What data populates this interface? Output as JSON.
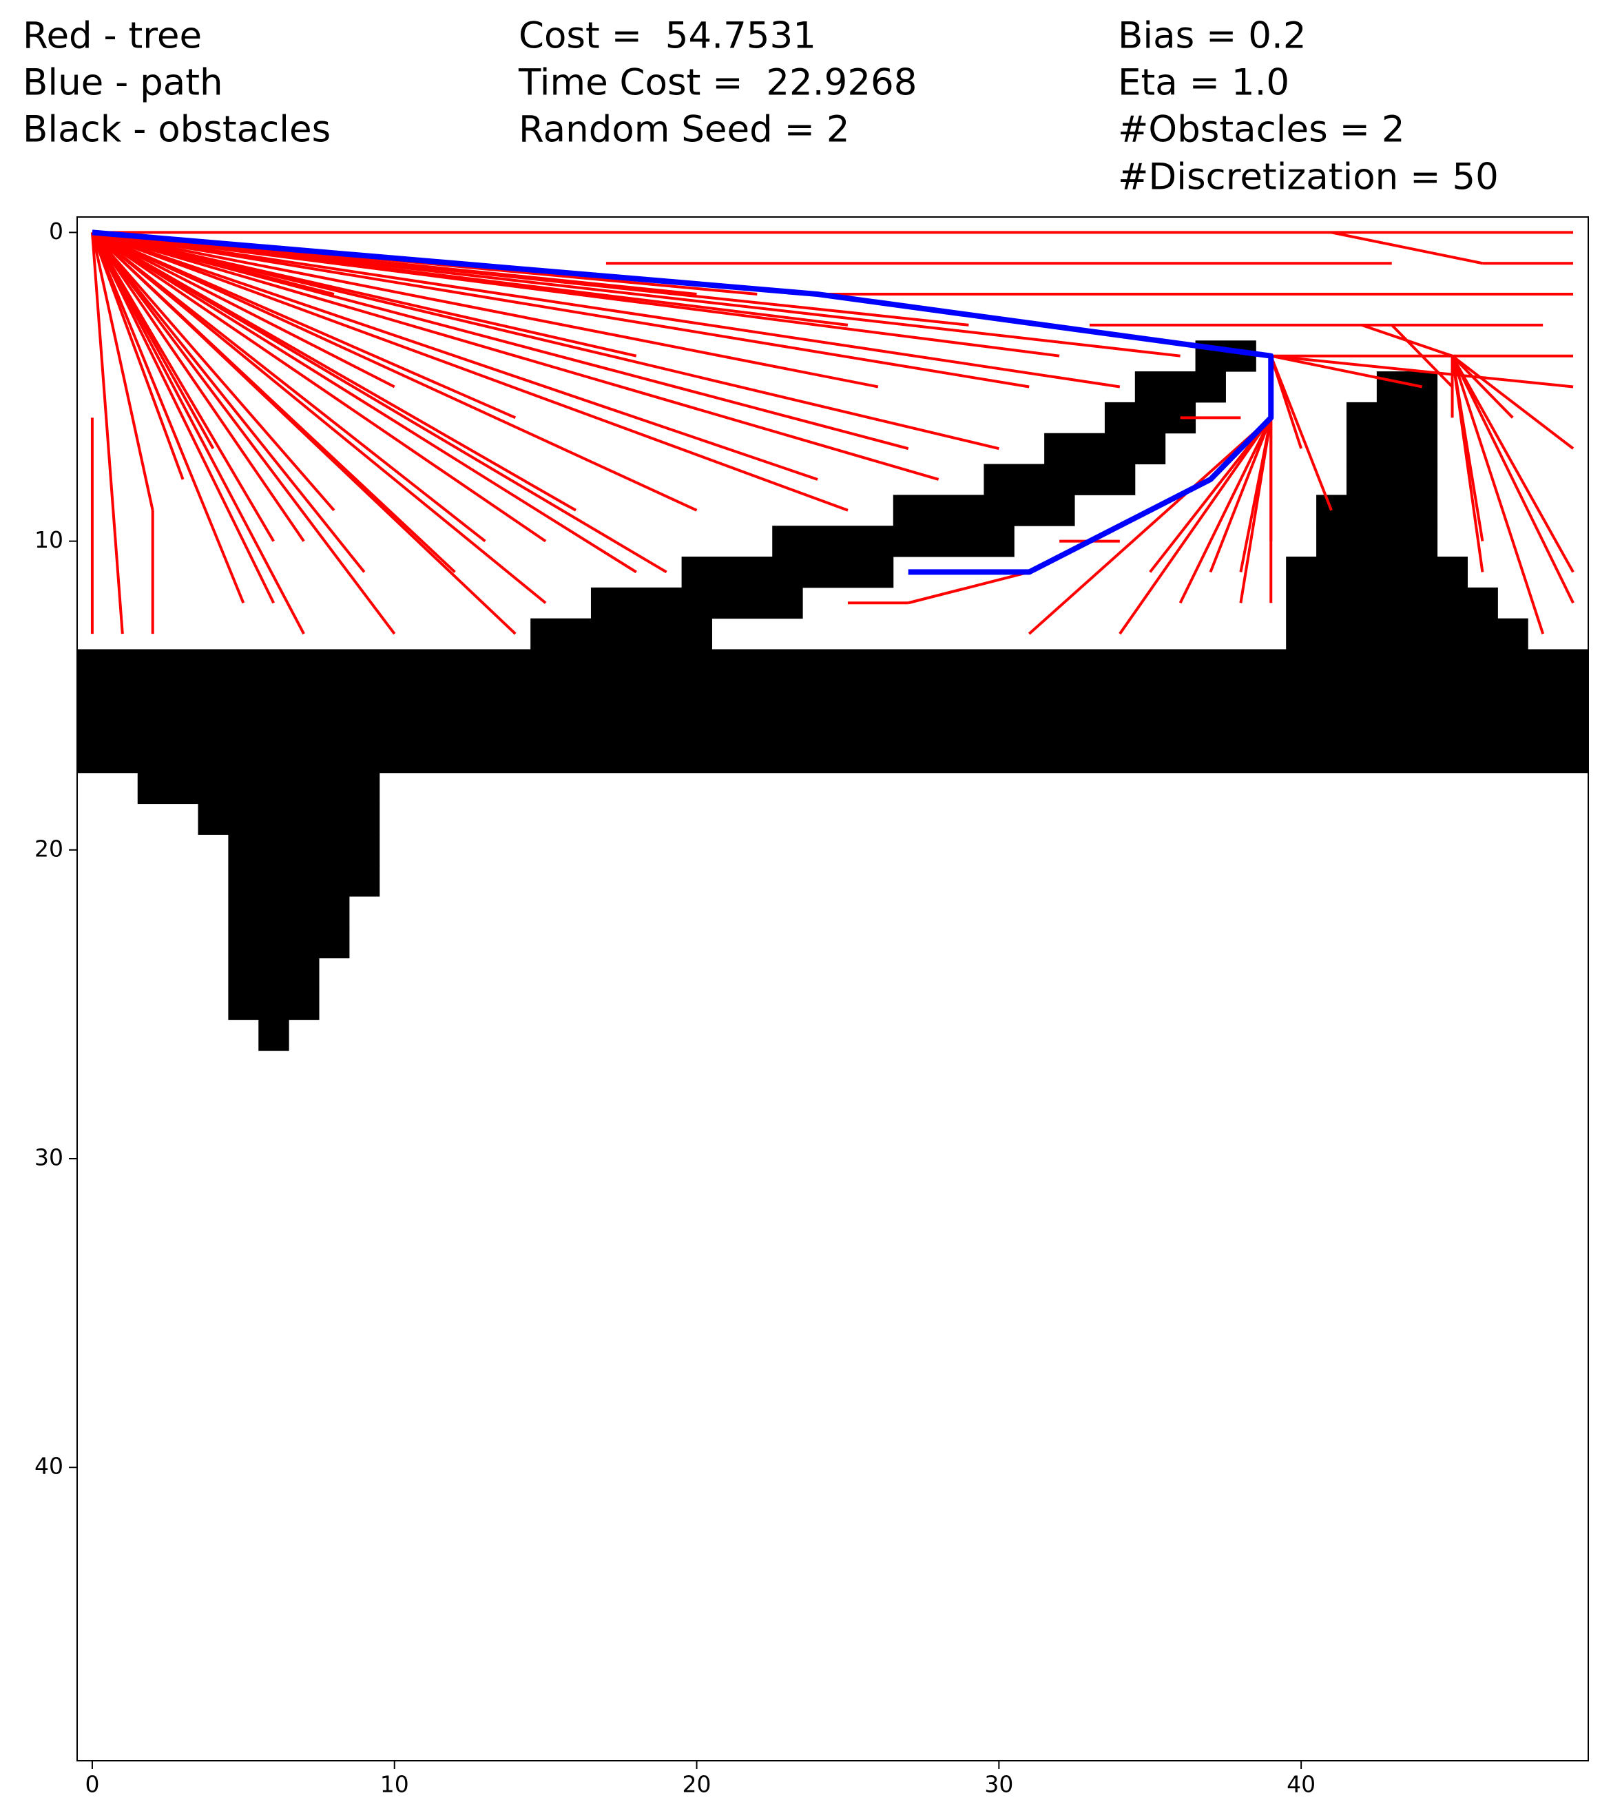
{
  "chart_data": {
    "type": "rrt",
    "annotations": [
      [
        "Red - tree",
        "Blue - path",
        "Black - obstacles"
      ],
      [
        "Cost =  54.7531",
        "Time Cost =  22.9268",
        "Random Seed = 2"
      ],
      [
        "Bias = 0.2",
        "Eta = 1.0",
        "#Obstacles = 2",
        "#Discretization = 50"
      ]
    ],
    "xlim": [
      -0.5,
      49.5
    ],
    "ylim": [
      49.5,
      -0.5
    ],
    "xticks": [
      0,
      10,
      20,
      30,
      40
    ],
    "yticks": [
      0,
      10,
      20,
      30,
      40
    ],
    "obstacle_color": "#000000",
    "obstacles": [
      {
        "row": 4,
        "cols": [
          37,
          38
        ]
      },
      {
        "row": 5,
        "cols": [
          35,
          37
        ]
      },
      {
        "row": 5,
        "cols": [
          43,
          44
        ]
      },
      {
        "row": 6,
        "cols": [
          34,
          36
        ]
      },
      {
        "row": 6,
        "cols": [
          42,
          44
        ]
      },
      {
        "row": 7,
        "cols": [
          32,
          35
        ]
      },
      {
        "row": 7,
        "cols": [
          42,
          44
        ]
      },
      {
        "row": 8,
        "cols": [
          30,
          34
        ]
      },
      {
        "row": 8,
        "cols": [
          42,
          44
        ]
      },
      {
        "row": 9,
        "cols": [
          27,
          32
        ]
      },
      {
        "row": 9,
        "cols": [
          41,
          44
        ]
      },
      {
        "row": 10,
        "cols": [
          23,
          30
        ]
      },
      {
        "row": 10,
        "cols": [
          41,
          44
        ]
      },
      {
        "row": 11,
        "cols": [
          20,
          26
        ]
      },
      {
        "row": 11,
        "cols": [
          40,
          45
        ]
      },
      {
        "row": 12,
        "cols": [
          17,
          23
        ]
      },
      {
        "row": 12,
        "cols": [
          40,
          46
        ]
      },
      {
        "row": 13,
        "cols": [
          15,
          20
        ]
      },
      {
        "row": 13,
        "cols": [
          40,
          47
        ]
      },
      {
        "row": 14,
        "cols": [
          0,
          49
        ]
      },
      {
        "row": 15,
        "cols": [
          0,
          49
        ]
      },
      {
        "row": 16,
        "cols": [
          0,
          49
        ]
      },
      {
        "row": 17,
        "cols": [
          0,
          49
        ]
      },
      {
        "row": 18,
        "cols": [
          2,
          9
        ]
      },
      {
        "row": 19,
        "cols": [
          4,
          9
        ]
      },
      {
        "row": 20,
        "cols": [
          5,
          9
        ]
      },
      {
        "row": 21,
        "cols": [
          5,
          9
        ]
      },
      {
        "row": 22,
        "cols": [
          5,
          8
        ]
      },
      {
        "row": 23,
        "cols": [
          5,
          8
        ]
      },
      {
        "row": 24,
        "cols": [
          5,
          7
        ]
      },
      {
        "row": 25,
        "cols": [
          5,
          7
        ]
      },
      {
        "row": 26,
        "cols": [
          6,
          6
        ]
      }
    ],
    "tree_color": "#ff0000",
    "tree_edges": [
      {
        "x": [
          0,
          1
        ],
        "y": [
          0,
          13
        ]
      },
      {
        "x": [
          0,
          2
        ],
        "y": [
          0,
          9
        ]
      },
      {
        "x": [
          0,
          5
        ],
        "y": [
          0,
          12
        ]
      },
      {
        "x": [
          0,
          6
        ],
        "y": [
          0,
          12
        ]
      },
      {
        "x": [
          0,
          7
        ],
        "y": [
          0,
          13
        ]
      },
      {
        "x": [
          0,
          10
        ],
        "y": [
          0,
          13
        ]
      },
      {
        "x": [
          0,
          9
        ],
        "y": [
          0,
          11
        ]
      },
      {
        "x": [
          0,
          8
        ],
        "y": [
          0,
          9
        ]
      },
      {
        "x": [
          0,
          7
        ],
        "y": [
          0,
          10
        ]
      },
      {
        "x": [
          0,
          3
        ],
        "y": [
          0,
          8
        ]
      },
      {
        "x": [
          0,
          6
        ],
        "y": [
          0,
          10
        ]
      },
      {
        "x": [
          0,
          4
        ],
        "y": [
          0,
          7
        ]
      },
      {
        "x": [
          0,
          12
        ],
        "y": [
          0,
          11
        ]
      },
      {
        "x": [
          0,
          14
        ],
        "y": [
          0,
          13
        ]
      },
      {
        "x": [
          0,
          15
        ],
        "y": [
          0,
          12
        ]
      },
      {
        "x": [
          0,
          13
        ],
        "y": [
          0,
          10
        ]
      },
      {
        "x": [
          0,
          15
        ],
        "y": [
          0,
          10
        ]
      },
      {
        "x": [
          0,
          19
        ],
        "y": [
          0,
          11
        ]
      },
      {
        "x": [
          0,
          18
        ],
        "y": [
          0,
          11
        ]
      },
      {
        "x": [
          0,
          16
        ],
        "y": [
          0,
          9
        ]
      },
      {
        "x": [
          0,
          20
        ],
        "y": [
          0,
          9
        ]
      },
      {
        "x": [
          0,
          25
        ],
        "y": [
          0,
          9
        ]
      },
      {
        "x": [
          0,
          24
        ],
        "y": [
          0,
          8
        ]
      },
      {
        "x": [
          0,
          28
        ],
        "y": [
          0,
          8
        ]
      },
      {
        "x": [
          0,
          27
        ],
        "y": [
          0,
          7
        ]
      },
      {
        "x": [
          0,
          30
        ],
        "y": [
          0,
          7
        ]
      },
      {
        "x": [
          0,
          26
        ],
        "y": [
          0,
          5
        ]
      },
      {
        "x": [
          0,
          31
        ],
        "y": [
          0,
          5
        ]
      },
      {
        "x": [
          0,
          34
        ],
        "y": [
          0,
          5
        ]
      },
      {
        "x": [
          0,
          32
        ],
        "y": [
          0,
          4
        ]
      },
      {
        "x": [
          0,
          36
        ],
        "y": [
          0,
          4
        ]
      },
      {
        "x": [
          0,
          25
        ],
        "y": [
          0,
          3
        ]
      },
      {
        "x": [
          0,
          29
        ],
        "y": [
          0,
          3
        ]
      },
      {
        "x": [
          0,
          20
        ],
        "y": [
          0,
          2
        ]
      },
      {
        "x": [
          0,
          22
        ],
        "y": [
          0,
          2
        ]
      },
      {
        "x": [
          0,
          10
        ],
        "y": [
          0,
          5
        ]
      },
      {
        "x": [
          0,
          14
        ],
        "y": [
          0,
          6
        ]
      },
      {
        "x": [
          0,
          18
        ],
        "y": [
          0,
          4
        ]
      },
      {
        "x": [
          0,
          8
        ],
        "y": [
          0,
          2
        ]
      },
      {
        "x": [
          2,
          2
        ],
        "y": [
          9,
          13
        ]
      },
      {
        "x": [
          0,
          0
        ],
        "y": [
          6,
          13
        ]
      },
      {
        "x": [
          0,
          49
        ],
        "y": [
          0,
          0
        ]
      },
      {
        "x": [
          17,
          43
        ],
        "y": [
          1,
          1
        ]
      },
      {
        "x": [
          24,
          49
        ],
        "y": [
          2,
          2
        ]
      },
      {
        "x": [
          33,
          48
        ],
        "y": [
          3,
          3
        ]
      },
      {
        "x": [
          41,
          46
        ],
        "y": [
          0,
          1
        ]
      },
      {
        "x": [
          46,
          49
        ],
        "y": [
          1,
          1
        ]
      },
      {
        "x": [
          36,
          38
        ],
        "y": [
          6,
          6
        ]
      },
      {
        "x": [
          32,
          34
        ],
        "y": [
          10,
          10
        ]
      },
      {
        "x": [
          25,
          27
        ],
        "y": [
          12,
          12
        ]
      },
      {
        "x": [
          27,
          31
        ],
        "y": [
          12,
          11
        ]
      },
      {
        "x": [
          39,
          49
        ],
        "y": [
          4,
          4
        ]
      },
      {
        "x": [
          39,
          49
        ],
        "y": [
          4,
          5
        ]
      },
      {
        "x": [
          39,
          40
        ],
        "y": [
          4,
          7
        ]
      },
      {
        "x": [
          39,
          41
        ],
        "y": [
          4,
          9
        ]
      },
      {
        "x": [
          39,
          39
        ],
        "y": [
          4,
          10
        ]
      },
      {
        "x": [
          39,
          39
        ],
        "y": [
          6,
          12
        ]
      },
      {
        "x": [
          39,
          44
        ],
        "y": [
          4,
          5
        ]
      },
      {
        "x": [
          39,
          34
        ],
        "y": [
          6,
          13
        ]
      },
      {
        "x": [
          39,
          31
        ],
        "y": [
          6,
          13
        ]
      },
      {
        "x": [
          39,
          36
        ],
        "y": [
          6,
          12
        ]
      },
      {
        "x": [
          39,
          38
        ],
        "y": [
          6,
          11
        ]
      },
      {
        "x": [
          39,
          37
        ],
        "y": [
          6,
          11
        ]
      },
      {
        "x": [
          39,
          35
        ],
        "y": [
          6,
          11
        ]
      },
      {
        "x": [
          39,
          38
        ],
        "y": [
          6,
          12
        ]
      },
      {
        "x": [
          45,
          49
        ],
        "y": [
          4,
          7
        ]
      },
      {
        "x": [
          45,
          49
        ],
        "y": [
          4,
          11
        ]
      },
      {
        "x": [
          45,
          49
        ],
        "y": [
          4,
          12
        ]
      },
      {
        "x": [
          45,
          48
        ],
        "y": [
          4,
          13
        ]
      },
      {
        "x": [
          45,
          46
        ],
        "y": [
          4,
          11
        ]
      },
      {
        "x": [
          45,
          46
        ],
        "y": [
          4,
          10
        ]
      },
      {
        "x": [
          45,
          47
        ],
        "y": [
          4,
          6
        ]
      },
      {
        "x": [
          43,
          45
        ],
        "y": [
          3,
          5
        ]
      },
      {
        "x": [
          42,
          45
        ],
        "y": [
          3,
          4
        ]
      },
      {
        "x": [
          45,
          45
        ],
        "y": [
          4,
          6
        ]
      }
    ],
    "path_color": "#0000ff",
    "path": {
      "x": [
        0,
        24,
        39,
        39,
        37,
        35,
        31,
        27
      ],
      "y": [
        0,
        2,
        4,
        6,
        8,
        9,
        11,
        11
      ]
    }
  }
}
